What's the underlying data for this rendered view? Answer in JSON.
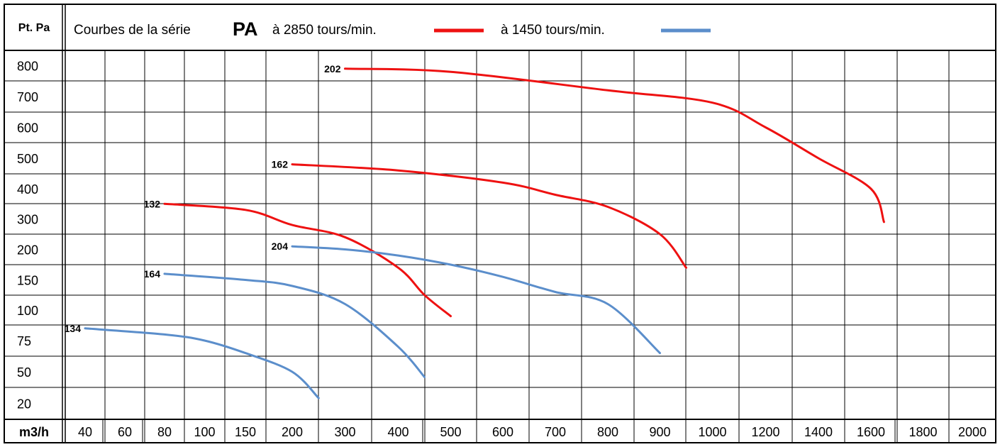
{
  "header": {
    "corner_label": "Pt. Pa",
    "title_prefix": "Courbes de la série",
    "title_series": "PA",
    "legend_high_label": "à 2850 tours/min.",
    "legend_low_label": "à 1450 tours/min."
  },
  "colors": {
    "high_speed": "#ee1111",
    "low_speed": "#5b8ecb",
    "grid": "#000000",
    "frame": "#000000"
  },
  "chart_data": {
    "type": "line",
    "title": "Courbes de la série PA",
    "xlabel": "m3/h",
    "ylabel": "Pt. Pa",
    "x_ticks": [
      "40",
      "60",
      "80",
      "100",
      "150",
      "200",
      "300",
      "400",
      "500",
      "600",
      "700",
      "800",
      "900",
      "1000",
      "1200",
      "1400",
      "1600",
      "1800",
      "2000"
    ],
    "y_ticks": [
      "800",
      "700",
      "600",
      "500",
      "400",
      "300",
      "200",
      "150",
      "100",
      "75",
      "50",
      "20"
    ],
    "x_scale": "categorical (non-linear)",
    "y_scale": "categorical (non-linear)",
    "grid": true,
    "legend": "top",
    "series": [
      {
        "name": "202",
        "speed": "à 2850 tours/min.",
        "points": [
          [
            300,
            790
          ],
          [
            500,
            780
          ],
          [
            800,
            720
          ],
          [
            1000,
            680
          ],
          [
            1200,
            600
          ],
          [
            1400,
            500
          ],
          [
            1600,
            400
          ],
          [
            1650,
            290
          ]
        ]
      },
      {
        "name": "162",
        "speed": "à 2850 tours/min.",
        "points": [
          [
            200,
            480
          ],
          [
            400,
            460
          ],
          [
            600,
            420
          ],
          [
            700,
            380
          ],
          [
            800,
            340
          ],
          [
            900,
            250
          ],
          [
            950,
            170
          ]
        ]
      },
      {
        "name": "132",
        "speed": "à 2850 tours/min.",
        "points": [
          [
            80,
            350
          ],
          [
            150,
            330
          ],
          [
            200,
            280
          ],
          [
            300,
            240
          ],
          [
            400,
            170
          ],
          [
            450,
            125
          ],
          [
            500,
            95
          ]
        ]
      },
      {
        "name": "204",
        "speed": "à 1450 tours/min.",
        "points": [
          [
            200,
            210
          ],
          [
            300,
            200
          ],
          [
            400,
            190
          ],
          [
            500,
            175
          ],
          [
            600,
            155
          ],
          [
            700,
            130
          ],
          [
            800,
            110
          ],
          [
            900,
            65
          ]
        ]
      },
      {
        "name": "164",
        "speed": "à 1450 tours/min.",
        "points": [
          [
            80,
            160
          ],
          [
            150,
            150
          ],
          [
            200,
            140
          ],
          [
            300,
            110
          ],
          [
            400,
            70
          ],
          [
            450,
            45
          ]
        ]
      },
      {
        "name": "134",
        "speed": "à 1450 tours/min.",
        "points": [
          [
            40,
            85
          ],
          [
            80,
            80
          ],
          [
            100,
            75
          ],
          [
            150,
            65
          ],
          [
            200,
            50
          ],
          [
            250,
            25
          ]
        ]
      }
    ]
  }
}
